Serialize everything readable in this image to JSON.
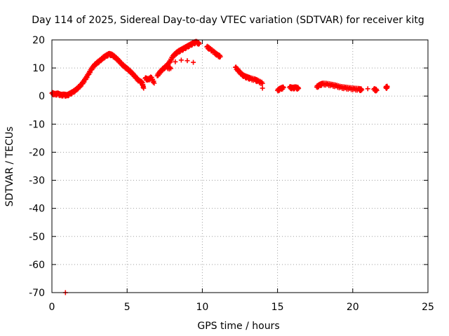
{
  "chart_data": {
    "type": "scatter",
    "title": "Day 114 of 2025, Sidereal Day-to-day VTEC variation (SDTVAR) for receiver kitg",
    "xlabel": "GPS time / hours",
    "ylabel": "SDTVAR / TECUs",
    "xlim": [
      0,
      25
    ],
    "ylim": [
      -70,
      20
    ],
    "xticks": [
      0,
      5,
      10,
      15,
      20,
      25
    ],
    "yticks": [
      20,
      10,
      0,
      -10,
      -20,
      -30,
      -40,
      -50,
      -60,
      -70
    ],
    "grid": true,
    "marker": "+",
    "color": "#ff0000",
    "series": [
      {
        "name": "SDTVAR",
        "points": [
          [
            0.0,
            1.0
          ],
          [
            0.2,
            0.6
          ],
          [
            0.4,
            0.8
          ],
          [
            0.6,
            0.3
          ],
          [
            0.8,
            0.4
          ],
          [
            1.0,
            0.2
          ],
          [
            1.2,
            0.8
          ],
          [
            1.4,
            1.4
          ],
          [
            1.6,
            2.2
          ],
          [
            1.8,
            3.2
          ],
          [
            2.0,
            4.3
          ],
          [
            2.2,
            5.8
          ],
          [
            2.4,
            7.5
          ],
          [
            2.6,
            9.3
          ],
          [
            2.8,
            10.8
          ],
          [
            3.0,
            11.8
          ],
          [
            3.2,
            12.6
          ],
          [
            3.4,
            13.6
          ],
          [
            3.6,
            14.3
          ],
          [
            3.8,
            14.9
          ],
          [
            4.0,
            14.6
          ],
          [
            4.2,
            13.8
          ],
          [
            4.4,
            12.8
          ],
          [
            4.6,
            11.6
          ],
          [
            4.8,
            10.6
          ],
          [
            5.0,
            9.7
          ],
          [
            5.2,
            8.8
          ],
          [
            5.4,
            7.7
          ],
          [
            5.6,
            6.5
          ],
          [
            5.8,
            5.3
          ],
          [
            6.0,
            4.8
          ],
          [
            6.1,
            2.8
          ],
          [
            6.2,
            6.3
          ],
          [
            6.4,
            5.8
          ],
          [
            6.6,
            6.6
          ],
          [
            6.8,
            4.6
          ],
          [
            7.0,
            7.2
          ],
          [
            7.2,
            8.6
          ],
          [
            7.4,
            9.7
          ],
          [
            7.6,
            10.6
          ],
          [
            7.8,
            11.8
          ],
          [
            8.0,
            13.8
          ],
          [
            8.2,
            15.0
          ],
          [
            8.4,
            15.8
          ],
          [
            8.6,
            16.4
          ],
          [
            8.8,
            17.0
          ],
          [
            9.0,
            17.6
          ],
          [
            9.2,
            18.2
          ],
          [
            9.4,
            18.8
          ],
          [
            9.6,
            19.2
          ],
          [
            9.8,
            18.6
          ],
          [
            8.2,
            12.2
          ],
          [
            8.6,
            12.8
          ],
          [
            9.0,
            12.6
          ],
          [
            9.4,
            12.0
          ],
          [
            7.6,
            10.3
          ],
          [
            7.9,
            9.8
          ],
          [
            10.3,
            17.5
          ],
          [
            10.5,
            16.8
          ],
          [
            10.8,
            15.5
          ],
          [
            11.0,
            14.6
          ],
          [
            11.2,
            14.0
          ],
          [
            12.2,
            10.2
          ],
          [
            12.4,
            9.0
          ],
          [
            12.6,
            7.8
          ],
          [
            12.8,
            7.0
          ],
          [
            13.0,
            6.6
          ],
          [
            13.2,
            6.2
          ],
          [
            13.5,
            5.8
          ],
          [
            13.7,
            5.3
          ],
          [
            14.0,
            4.5
          ],
          [
            14.0,
            2.8
          ],
          [
            15.0,
            2.0
          ],
          [
            15.2,
            2.6
          ],
          [
            15.4,
            3.0
          ],
          [
            15.8,
            3.1
          ],
          [
            16.0,
            2.8
          ],
          [
            16.2,
            3.0
          ],
          [
            16.4,
            2.7
          ],
          [
            17.6,
            3.2
          ],
          [
            17.8,
            3.9
          ],
          [
            18.0,
            4.3
          ],
          [
            18.3,
            4.2
          ],
          [
            18.6,
            3.9
          ],
          [
            18.9,
            3.6
          ],
          [
            19.2,
            3.1
          ],
          [
            19.5,
            2.9
          ],
          [
            19.8,
            2.7
          ],
          [
            20.1,
            2.5
          ],
          [
            20.4,
            2.4
          ],
          [
            20.6,
            2.2
          ],
          [
            21.0,
            2.6
          ],
          [
            21.4,
            2.4
          ],
          [
            21.6,
            2.0
          ],
          [
            22.2,
            3.0
          ],
          [
            22.3,
            3.2
          ],
          [
            0.9,
            -70.0
          ]
        ]
      }
    ]
  }
}
